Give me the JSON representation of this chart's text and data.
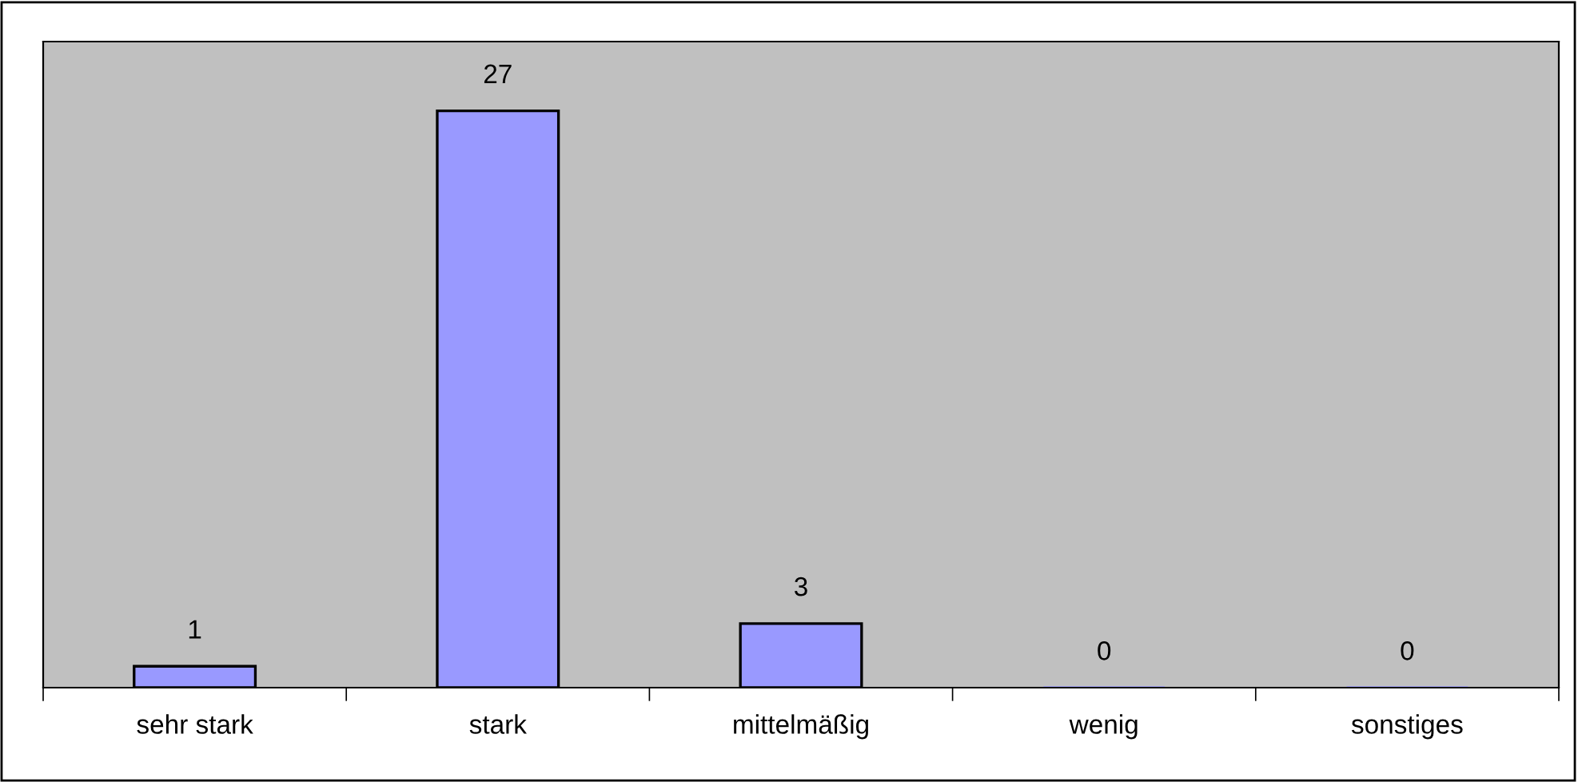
{
  "chart_data": {
    "type": "bar",
    "categories": [
      "sehr stark",
      "stark",
      "mittelmäßig",
      "wenig",
      "sonstiges"
    ],
    "values": [
      1,
      27,
      3,
      0,
      0
    ],
    "color": "#9999ff",
    "data_labels": true,
    "grid": false,
    "legend": false
  }
}
